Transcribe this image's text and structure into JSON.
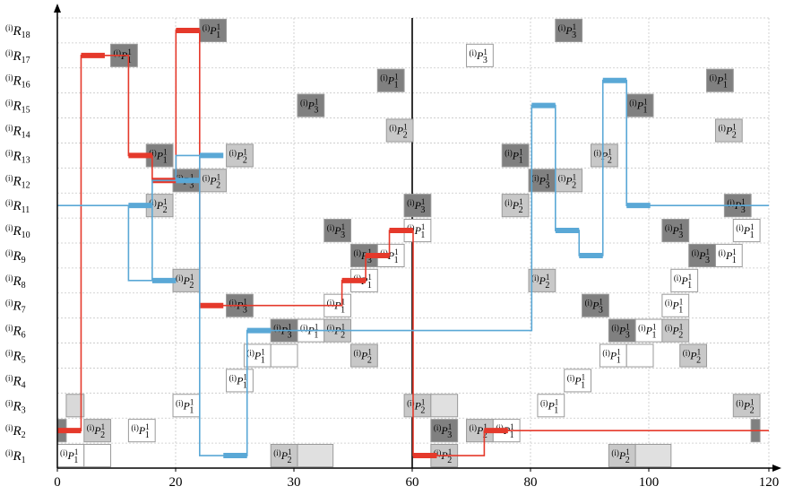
{
  "chart_data": {
    "type": "scatter",
    "xlim": [
      0,
      120
    ],
    "x_ticks": [
      "0",
      "20",
      "30",
      "60",
      "80",
      "100",
      "120"
    ],
    "x_tick_values": [
      0,
      20,
      30,
      60,
      80,
      100,
      120
    ],
    "y_labels": [
      "R1",
      "R2",
      "R3",
      "R4",
      "R5",
      "R6",
      "R7",
      "R8",
      "R9",
      "R10",
      "R11",
      "R12",
      "R13",
      "R14",
      "R15",
      "R16",
      "R17",
      "R18"
    ],
    "label_prefix": "(i)",
    "grid": true,
    "boxes": [
      {
        "x0": 0,
        "x1": 3,
        "row": 1,
        "shade": "#ffffff",
        "label": "P",
        "sub": "1"
      },
      {
        "x0": 3,
        "x1": 6,
        "row": 1,
        "shade": "#ffffff",
        "label": "",
        "sub": ""
      },
      {
        "x0": 0,
        "x1": 1,
        "row": 2,
        "shade": "#808080",
        "label": "",
        "sub": ""
      },
      {
        "x0": 1,
        "x1": 3,
        "row": 3,
        "shade": "#d9d9d9",
        "label": "",
        "sub": ""
      },
      {
        "x0": 3,
        "x1": 6,
        "row": 2,
        "shade": "#c8c8c8",
        "label": "P",
        "sub": "2"
      },
      {
        "x0": 6,
        "x1": 9,
        "row": 17,
        "shade": "#808080",
        "label": "P",
        "sub": "1"
      },
      {
        "x0": 8,
        "x1": 11,
        "row": 2,
        "shade": "#ffffff",
        "label": "P",
        "sub": "1"
      },
      {
        "x0": 10,
        "x1": 13,
        "row": 13,
        "shade": "#808080",
        "label": "P",
        "sub": "1"
      },
      {
        "x0": 10,
        "x1": 13,
        "row": 11,
        "shade": "#c8c8c8",
        "label": "P",
        "sub": "2"
      },
      {
        "x0": 13,
        "x1": 16,
        "row": 12,
        "shade": "#808080",
        "label": "P",
        "sub": "3"
      },
      {
        "x0": 13,
        "x1": 16,
        "row": 8,
        "shade": "#c8c8c8",
        "label": "P",
        "sub": "2"
      },
      {
        "x0": 13,
        "x1": 16,
        "row": 3,
        "shade": "#ffffff",
        "label": "P",
        "sub": "1"
      },
      {
        "x0": 16,
        "x1": 19,
        "row": 18,
        "shade": "#808080",
        "label": "P",
        "sub": "1"
      },
      {
        "x0": 16,
        "x1": 19,
        "row": 12,
        "shade": "#c8c8c8",
        "label": "P",
        "sub": "2"
      },
      {
        "x0": 19,
        "x1": 22,
        "row": 4,
        "shade": "#ffffff",
        "label": "P",
        "sub": "1"
      },
      {
        "x0": 19,
        "x1": 22,
        "row": 13,
        "shade": "#c8c8c8",
        "label": "P",
        "sub": "2"
      },
      {
        "x0": 19,
        "x1": 22,
        "row": 7,
        "shade": "#808080",
        "label": "P",
        "sub": "3"
      },
      {
        "x0": 21,
        "x1": 24,
        "row": 5,
        "shade": "#ffffff",
        "label": "P",
        "sub": "1"
      },
      {
        "x0": 24,
        "x1": 27,
        "row": 5,
        "shade": "#ffffff",
        "label": "",
        "sub": ""
      },
      {
        "x0": 24,
        "x1": 27,
        "row": 6,
        "shade": "#808080",
        "label": "P",
        "sub": "3"
      },
      {
        "x0": 24,
        "x1": 27,
        "row": 1,
        "shade": "#c8c8c8",
        "label": "P",
        "sub": "2"
      },
      {
        "x0": 27,
        "x1": 31,
        "row": 1,
        "shade": "#e0e0e0",
        "label": "",
        "sub": ""
      },
      {
        "x0": 27,
        "x1": 30,
        "row": 6,
        "shade": "#ffffff",
        "label": "P",
        "sub": "1"
      },
      {
        "x0": 27,
        "x1": 30,
        "row": 15,
        "shade": "#808080",
        "label": "P",
        "sub": "3"
      },
      {
        "x0": 30,
        "x1": 33,
        "row": 7,
        "shade": "#ffffff",
        "label": "P",
        "sub": "1"
      },
      {
        "x0": 30,
        "x1": 33,
        "row": 6,
        "shade": "#c8c8c8",
        "label": "P",
        "sub": "2"
      },
      {
        "x0": 30,
        "x1": 33,
        "row": 10,
        "shade": "#808080",
        "label": "P",
        "sub": "3"
      },
      {
        "x0": 33,
        "x1": 36,
        "row": 9,
        "shade": "#808080",
        "label": "P",
        "sub": "3"
      },
      {
        "x0": 33,
        "x1": 36,
        "row": 8,
        "shade": "#ffffff",
        "label": "P",
        "sub": "1"
      },
      {
        "x0": 33,
        "x1": 36,
        "row": 5,
        "shade": "#c8c8c8",
        "label": "P",
        "sub": "2"
      },
      {
        "x0": 36,
        "x1": 39,
        "row": 9,
        "shade": "#ffffff",
        "label": "P",
        "sub": "1"
      },
      {
        "x0": 36,
        "x1": 39,
        "row": 16,
        "shade": "#808080",
        "label": "P",
        "sub": "1"
      },
      {
        "x0": 37,
        "x1": 40,
        "row": 14,
        "shade": "#c8c8c8",
        "label": "P",
        "sub": "2"
      },
      {
        "x0": 39,
        "x1": 42,
        "row": 11,
        "shade": "#808080",
        "label": "P",
        "sub": "3"
      },
      {
        "x0": 39,
        "x1": 42,
        "row": 10,
        "shade": "#ffffff",
        "label": "P",
        "sub": "1"
      },
      {
        "x0": 39,
        "x1": 42,
        "row": 3,
        "shade": "#c8c8c8",
        "label": "P",
        "sub": "2"
      },
      {
        "x0": 42,
        "x1": 45,
        "row": 3,
        "shade": "#e0e0e0",
        "label": "",
        "sub": ""
      },
      {
        "x0": 42,
        "x1": 45,
        "row": 2,
        "shade": "#808080",
        "label": "P",
        "sub": "3"
      },
      {
        "x0": 42,
        "x1": 45,
        "row": 1,
        "shade": "#c8c8c8",
        "label": "P",
        "sub": "2"
      },
      {
        "x0": 46,
        "x1": 49,
        "row": 2,
        "shade": "#c8c8c8",
        "label": "P",
        "sub": "2"
      },
      {
        "x0": 46,
        "x1": 49,
        "row": 17,
        "shade": "#ffffff",
        "label": "P",
        "sub": "3"
      },
      {
        "x0": 49,
        "x1": 52,
        "row": 2,
        "shade": "#ffffff",
        "label": "P",
        "sub": "1"
      },
      {
        "x0": 50,
        "x1": 53,
        "row": 13,
        "shade": "#808080",
        "label": "P",
        "sub": "1"
      },
      {
        "x0": 50,
        "x1": 53,
        "row": 11,
        "shade": "#c8c8c8",
        "label": "P",
        "sub": "2"
      },
      {
        "x0": 53,
        "x1": 56,
        "row": 12,
        "shade": "#808080",
        "label": "P",
        "sub": "3"
      },
      {
        "x0": 53,
        "x1": 56,
        "row": 8,
        "shade": "#c8c8c8",
        "label": "P",
        "sub": "2"
      },
      {
        "x0": 54,
        "x1": 57,
        "row": 3,
        "shade": "#ffffff",
        "label": "P",
        "sub": "1"
      },
      {
        "x0": 56,
        "x1": 59,
        "row": 12,
        "shade": "#c8c8c8",
        "label": "P",
        "sub": "2"
      },
      {
        "x0": 56,
        "x1": 59,
        "row": 18,
        "shade": "#808080",
        "label": "P",
        "sub": "3"
      },
      {
        "x0": 57,
        "x1": 60,
        "row": 4,
        "shade": "#ffffff",
        "label": "P",
        "sub": "1"
      },
      {
        "x0": 59,
        "x1": 62,
        "row": 7,
        "shade": "#808080",
        "label": "P",
        "sub": "3"
      },
      {
        "x0": 60,
        "x1": 63,
        "row": 13,
        "shade": "#c8c8c8",
        "label": "P",
        "sub": "2"
      },
      {
        "x0": 61,
        "x1": 64,
        "row": 5,
        "shade": "#ffffff",
        "label": "P",
        "sub": "1"
      },
      {
        "x0": 64,
        "x1": 67,
        "row": 5,
        "shade": "#ffffff",
        "label": "",
        "sub": ""
      },
      {
        "x0": 62,
        "x1": 65,
        "row": 6,
        "shade": "#808080",
        "label": "P",
        "sub": "3"
      },
      {
        "x0": 62,
        "x1": 65,
        "row": 1,
        "shade": "#c8c8c8",
        "label": "P",
        "sub": "2"
      },
      {
        "x0": 65,
        "x1": 69,
        "row": 1,
        "shade": "#e0e0e0",
        "label": "",
        "sub": ""
      },
      {
        "x0": 64,
        "x1": 67,
        "row": 15,
        "shade": "#808080",
        "label": "P",
        "sub": "1"
      },
      {
        "x0": 65,
        "x1": 68,
        "row": 6,
        "shade": "#ffffff",
        "label": "P",
        "sub": "1"
      },
      {
        "x0": 68,
        "x1": 71,
        "row": 6,
        "shade": "#c8c8c8",
        "label": "P",
        "sub": "2"
      },
      {
        "x0": 68,
        "x1": 71,
        "row": 10,
        "shade": "#808080",
        "label": "P",
        "sub": "3"
      },
      {
        "x0": 68,
        "x1": 71,
        "row": 7,
        "shade": "#ffffff",
        "label": "P",
        "sub": "1"
      },
      {
        "x0": 69,
        "x1": 72,
        "row": 8,
        "shade": "#ffffff",
        "label": "P",
        "sub": "1"
      },
      {
        "x0": 70,
        "x1": 73,
        "row": 5,
        "shade": "#c8c8c8",
        "label": "P",
        "sub": "2"
      },
      {
        "x0": 71,
        "x1": 74,
        "row": 9,
        "shade": "#808080",
        "label": "P",
        "sub": "3"
      },
      {
        "x0": 74,
        "x1": 77,
        "row": 9,
        "shade": "#ffffff",
        "label": "P",
        "sub": "1"
      },
      {
        "x0": 73,
        "x1": 76,
        "row": 16,
        "shade": "#808080",
        "label": "P",
        "sub": "1"
      },
      {
        "x0": 74,
        "x1": 77,
        "row": 14,
        "shade": "#c8c8c8",
        "label": "P",
        "sub": "2"
      },
      {
        "x0": 75,
        "x1": 78,
        "row": 11,
        "shade": "#808080",
        "label": "P",
        "sub": "3"
      },
      {
        "x0": 76,
        "x1": 79,
        "row": 10,
        "shade": "#ffffff",
        "label": "P",
        "sub": "1"
      },
      {
        "x0": 76,
        "x1": 79,
        "row": 3,
        "shade": "#c8c8c8",
        "label": "P",
        "sub": "2"
      },
      {
        "x0": 78,
        "x1": 79,
        "row": 2,
        "shade": "#808080",
        "label": "",
        "sub": ""
      }
    ],
    "red_line": {
      "name": "",
      "color": "#e5392b",
      "points": [
        [
          0,
          2
        ],
        [
          1,
          2
        ],
        [
          1,
          17
        ],
        [
          3,
          17
        ],
        [
          3,
          13
        ],
        [
          4,
          13
        ],
        [
          4,
          12
        ],
        [
          5,
          12
        ],
        [
          5,
          18
        ],
        [
          6,
          18
        ],
        [
          6,
          7
        ],
        [
          12,
          7
        ],
        [
          12,
          8
        ],
        [
          13,
          8
        ],
        [
          13,
          9
        ],
        [
          14,
          9
        ],
        [
          14,
          10
        ],
        [
          15,
          10
        ],
        [
          15,
          1
        ],
        [
          18,
          1
        ],
        [
          18,
          2
        ],
        [
          30,
          2
        ],
        [
          30,
          2
        ]
      ],
      "highlights": [
        [
          0,
          2
        ],
        [
          1,
          17
        ],
        [
          3,
          13
        ],
        [
          4,
          12
        ],
        [
          5,
          18
        ],
        [
          6,
          7
        ],
        [
          12,
          8
        ],
        [
          13,
          9
        ],
        [
          14,
          10
        ],
        [
          15,
          1
        ],
        [
          18,
          2
        ]
      ]
    },
    "blue_line": {
      "name": "",
      "color": "#5aa8d6",
      "points": [
        [
          0,
          11
        ],
        [
          3,
          11
        ],
        [
          3,
          8
        ],
        [
          4,
          8
        ],
        [
          4,
          12
        ],
        [
          5,
          12
        ],
        [
          5,
          13
        ],
        [
          6,
          13
        ],
        [
          6,
          1
        ],
        [
          8,
          1
        ],
        [
          8,
          6
        ],
        [
          20,
          6
        ],
        [
          20,
          15
        ],
        [
          21,
          15
        ],
        [
          21,
          10
        ],
        [
          22,
          10
        ],
        [
          22,
          9
        ],
        [
          23,
          9
        ],
        [
          23,
          16
        ],
        [
          24,
          16
        ],
        [
          24,
          11
        ],
        [
          30,
          11
        ]
      ],
      "highlights": [
        [
          3,
          11
        ],
        [
          4,
          8
        ],
        [
          5,
          12
        ],
        [
          6,
          13
        ],
        [
          7,
          1
        ],
        [
          8,
          6
        ],
        [
          20,
          15
        ],
        [
          21,
          10
        ],
        [
          22,
          9
        ],
        [
          23,
          16
        ],
        [
          24,
          11
        ]
      ]
    }
  }
}
